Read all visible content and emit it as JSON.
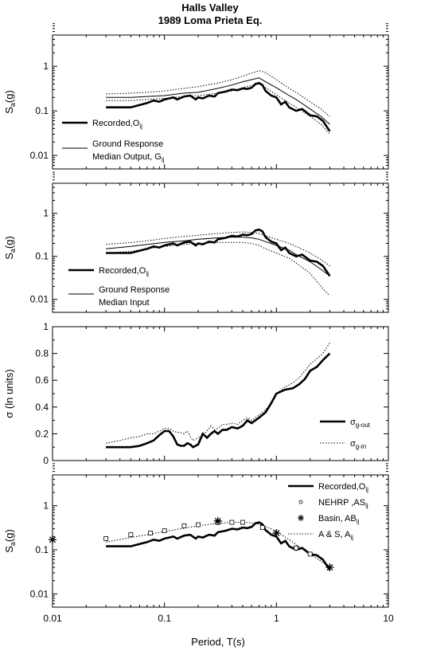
{
  "title": "Halls Valley",
  "subtitle": "1989 Loma Prieta Eq.",
  "xlabel": "Period, T(s)",
  "chart_data": [
    {
      "type": "line",
      "yscale": "log",
      "xscale": "log",
      "xlim": [
        0.01,
        10
      ],
      "ylim": [
        0.005,
        5
      ],
      "ylabel": "Sa(g)",
      "yticks": [
        0.01,
        0.1,
        1
      ],
      "ytick_labels": [
        "0.01",
        "0.1",
        "1"
      ],
      "series": [
        {
          "name": "Recorded,Oij",
          "style": "thick",
          "x": [
            0.03,
            0.05,
            0.07,
            0.08,
            0.09,
            0.1,
            0.11,
            0.12,
            0.13,
            0.15,
            0.17,
            0.19,
            0.2,
            0.22,
            0.25,
            0.28,
            0.3,
            0.35,
            0.4,
            0.45,
            0.5,
            0.55,
            0.6,
            0.65,
            0.7,
            0.75,
            0.8,
            0.9,
            1.0,
            1.1,
            1.2,
            1.3,
            1.5,
            1.7,
            2.0,
            2.3,
            2.6,
            3.0
          ],
          "y": [
            0.12,
            0.12,
            0.15,
            0.17,
            0.16,
            0.18,
            0.19,
            0.2,
            0.18,
            0.21,
            0.22,
            0.18,
            0.2,
            0.19,
            0.22,
            0.21,
            0.25,
            0.27,
            0.3,
            0.29,
            0.32,
            0.31,
            0.33,
            0.4,
            0.42,
            0.38,
            0.28,
            0.22,
            0.2,
            0.14,
            0.16,
            0.12,
            0.1,
            0.11,
            0.08,
            0.075,
            0.06,
            0.035
          ]
        },
        {
          "name": "Median Output, Gij",
          "style": "thin",
          "x": [
            0.03,
            0.05,
            0.07,
            0.1,
            0.15,
            0.2,
            0.3,
            0.4,
            0.5,
            0.6,
            0.7,
            0.8,
            1.0,
            1.3,
            1.5,
            2.0,
            2.5,
            3.0
          ],
          "y": [
            0.2,
            0.2,
            0.21,
            0.22,
            0.25,
            0.26,
            0.32,
            0.38,
            0.45,
            0.5,
            0.55,
            0.45,
            0.33,
            0.22,
            0.18,
            0.11,
            0.075,
            0.05
          ]
        },
        {
          "name": "",
          "style": "dotted",
          "x": [
            0.03,
            0.05,
            0.07,
            0.1,
            0.15,
            0.2,
            0.3,
            0.4,
            0.5,
            0.6,
            0.7,
            0.8,
            1.0,
            1.3,
            1.5,
            2.0,
            2.5,
            3.0
          ],
          "y": [
            0.24,
            0.25,
            0.26,
            0.28,
            0.32,
            0.35,
            0.42,
            0.5,
            0.6,
            0.7,
            0.8,
            0.72,
            0.5,
            0.32,
            0.26,
            0.16,
            0.11,
            0.075
          ]
        },
        {
          "name": "",
          "style": "dotted",
          "x": [
            0.03,
            0.05,
            0.07,
            0.1,
            0.15,
            0.2,
            0.3,
            0.4,
            0.5,
            0.6,
            0.7,
            0.8,
            1.0,
            1.3,
            1.5,
            2.0,
            2.5,
            3.0
          ],
          "y": [
            0.17,
            0.17,
            0.18,
            0.19,
            0.21,
            0.22,
            0.25,
            0.28,
            0.33,
            0.37,
            0.4,
            0.33,
            0.23,
            0.15,
            0.12,
            0.075,
            0.05,
            0.03
          ]
        }
      ],
      "legend": [
        {
          "style": "thick",
          "lines": [
            "Recorded,O",
            "ij"
          ]
        },
        {
          "style": "thin",
          "lines": [
            "Ground Response",
            "Median Output, G",
            "ij"
          ]
        }
      ]
    },
    {
      "type": "line",
      "yscale": "log",
      "xscale": "log",
      "xlim": [
        0.01,
        10
      ],
      "ylim": [
        0.005,
        5
      ],
      "ylabel": "Sa(g)",
      "yticks": [
        0.01,
        0.1,
        1
      ],
      "ytick_labels": [
        "0.01",
        "0.1",
        "1"
      ],
      "series": [
        {
          "name": "Recorded,Oij",
          "style": "thick",
          "x": [
            0.03,
            0.05,
            0.07,
            0.08,
            0.09,
            0.1,
            0.11,
            0.12,
            0.13,
            0.15,
            0.17,
            0.19,
            0.2,
            0.22,
            0.25,
            0.28,
            0.3,
            0.35,
            0.4,
            0.45,
            0.5,
            0.55,
            0.6,
            0.65,
            0.7,
            0.75,
            0.8,
            0.9,
            1.0,
            1.1,
            1.2,
            1.3,
            1.5,
            1.7,
            2.0,
            2.3,
            2.6,
            3.0
          ],
          "y": [
            0.12,
            0.12,
            0.15,
            0.17,
            0.16,
            0.18,
            0.19,
            0.2,
            0.18,
            0.21,
            0.22,
            0.18,
            0.2,
            0.19,
            0.22,
            0.21,
            0.25,
            0.27,
            0.3,
            0.29,
            0.32,
            0.31,
            0.33,
            0.4,
            0.42,
            0.38,
            0.28,
            0.22,
            0.2,
            0.14,
            0.16,
            0.12,
            0.1,
            0.11,
            0.08,
            0.075,
            0.06,
            0.035
          ]
        },
        {
          "name": "Median Input",
          "style": "thin",
          "x": [
            0.03,
            0.05,
            0.07,
            0.1,
            0.15,
            0.2,
            0.3,
            0.4,
            0.5,
            0.6,
            0.7,
            0.8,
            1.0,
            1.3,
            1.5,
            2.0,
            2.5,
            3.0
          ],
          "y": [
            0.15,
            0.17,
            0.19,
            0.21,
            0.23,
            0.25,
            0.27,
            0.28,
            0.28,
            0.27,
            0.25,
            0.22,
            0.18,
            0.14,
            0.11,
            0.075,
            0.05,
            0.035
          ]
        },
        {
          "name": "",
          "style": "dotted",
          "x": [
            0.03,
            0.05,
            0.07,
            0.1,
            0.15,
            0.2,
            0.3,
            0.4,
            0.5,
            0.6,
            0.7,
            0.8,
            1.0,
            1.3,
            1.5,
            2.0,
            2.5,
            3.0
          ],
          "y": [
            0.19,
            0.21,
            0.23,
            0.26,
            0.29,
            0.31,
            0.34,
            0.36,
            0.37,
            0.36,
            0.34,
            0.3,
            0.25,
            0.2,
            0.17,
            0.12,
            0.085,
            0.06
          ]
        },
        {
          "name": "",
          "style": "dotted",
          "x": [
            0.03,
            0.05,
            0.07,
            0.1,
            0.15,
            0.2,
            0.3,
            0.4,
            0.5,
            0.6,
            0.7,
            0.8,
            1.0,
            1.3,
            1.5,
            2.0,
            2.5,
            3.0
          ],
          "y": [
            0.12,
            0.13,
            0.15,
            0.17,
            0.19,
            0.2,
            0.21,
            0.21,
            0.21,
            0.2,
            0.18,
            0.15,
            0.12,
            0.09,
            0.07,
            0.04,
            0.02,
            0.012
          ]
        }
      ],
      "legend": [
        {
          "style": "thick",
          "lines": [
            "Recorded,O",
            "ij"
          ]
        },
        {
          "style": "thin",
          "lines": [
            "Ground Response",
            "Median Input"
          ]
        }
      ]
    },
    {
      "type": "line",
      "yscale": "linear",
      "xscale": "log",
      "xlim": [
        0.01,
        10
      ],
      "ylim": [
        0,
        1
      ],
      "ylabel": "σ (ln units)",
      "yticks": [
        0,
        0.2,
        0.4,
        0.6,
        0.8,
        1
      ],
      "ytick_labels": [
        "0",
        "0.2",
        "0.4",
        "0.6",
        "0.8",
        "1"
      ],
      "series": [
        {
          "name": "σg-out",
          "style": "thick",
          "x": [
            0.03,
            0.04,
            0.05,
            0.06,
            0.07,
            0.08,
            0.09,
            0.1,
            0.11,
            0.12,
            0.13,
            0.14,
            0.15,
            0.16,
            0.17,
            0.18,
            0.2,
            0.22,
            0.24,
            0.26,
            0.28,
            0.3,
            0.33,
            0.36,
            0.4,
            0.45,
            0.5,
            0.55,
            0.6,
            0.7,
            0.8,
            0.9,
            1.0,
            1.2,
            1.4,
            1.6,
            1.8,
            2.0,
            2.3,
            2.6,
            3.0
          ],
          "y": [
            0.1,
            0.1,
            0.1,
            0.11,
            0.13,
            0.15,
            0.19,
            0.22,
            0.22,
            0.18,
            0.12,
            0.11,
            0.11,
            0.13,
            0.12,
            0.1,
            0.12,
            0.2,
            0.17,
            0.2,
            0.22,
            0.2,
            0.23,
            0.23,
            0.25,
            0.24,
            0.26,
            0.3,
            0.28,
            0.32,
            0.36,
            0.43,
            0.5,
            0.53,
            0.54,
            0.57,
            0.61,
            0.67,
            0.7,
            0.75,
            0.8
          ]
        },
        {
          "name": "σg-in",
          "style": "dotted",
          "x": [
            0.03,
            0.04,
            0.05,
            0.06,
            0.07,
            0.08,
            0.09,
            0.1,
            0.11,
            0.12,
            0.13,
            0.14,
            0.15,
            0.16,
            0.17,
            0.18,
            0.2,
            0.22,
            0.24,
            0.26,
            0.28,
            0.3,
            0.33,
            0.36,
            0.4,
            0.45,
            0.5,
            0.55,
            0.6,
            0.7,
            0.8,
            0.9,
            1.0,
            1.2,
            1.4,
            1.6,
            1.8,
            2.0,
            2.3,
            2.6,
            3.0
          ],
          "y": [
            0.13,
            0.15,
            0.17,
            0.18,
            0.2,
            0.2,
            0.22,
            0.24,
            0.24,
            0.22,
            0.21,
            0.21,
            0.2,
            0.22,
            0.18,
            0.15,
            0.17,
            0.19,
            0.22,
            0.26,
            0.23,
            0.24,
            0.27,
            0.27,
            0.28,
            0.27,
            0.3,
            0.32,
            0.3,
            0.34,
            0.38,
            0.43,
            0.5,
            0.55,
            0.58,
            0.62,
            0.67,
            0.72,
            0.76,
            0.8,
            0.88
          ]
        }
      ],
      "legend": [
        {
          "style": "thick",
          "lines": [
            "σ",
            "g-out"
          ]
        },
        {
          "style": "dotted",
          "lines": [
            "σ",
            "g-in"
          ]
        }
      ]
    },
    {
      "type": "line",
      "yscale": "log",
      "xscale": "log",
      "xlim": [
        0.01,
        10
      ],
      "ylim": [
        0.005,
        5
      ],
      "ylabel": "Sa(g)",
      "yticks": [
        0.01,
        0.1,
        1
      ],
      "ytick_labels": [
        "0.01",
        "0.1",
        "1"
      ],
      "xticks": [
        0.01,
        0.1,
        1,
        10
      ],
      "xtick_labels": [
        "0.01",
        "0.1",
        "1",
        "10"
      ],
      "series": [
        {
          "name": "Recorded,Oij",
          "style": "thick",
          "x": [
            0.03,
            0.05,
            0.07,
            0.08,
            0.09,
            0.1,
            0.11,
            0.12,
            0.13,
            0.15,
            0.17,
            0.19,
            0.2,
            0.22,
            0.25,
            0.28,
            0.3,
            0.35,
            0.4,
            0.45,
            0.5,
            0.55,
            0.6,
            0.65,
            0.7,
            0.75,
            0.8,
            0.9,
            1.0,
            1.1,
            1.2,
            1.3,
            1.5,
            1.7,
            2.0,
            2.3,
            2.6,
            3.0
          ],
          "y": [
            0.12,
            0.12,
            0.15,
            0.17,
            0.16,
            0.18,
            0.19,
            0.2,
            0.18,
            0.21,
            0.22,
            0.18,
            0.2,
            0.19,
            0.22,
            0.21,
            0.25,
            0.27,
            0.3,
            0.29,
            0.32,
            0.31,
            0.33,
            0.4,
            0.42,
            0.38,
            0.28,
            0.22,
            0.2,
            0.14,
            0.16,
            0.12,
            0.1,
            0.11,
            0.08,
            0.075,
            0.06,
            0.035
          ]
        },
        {
          "name": "A & S, Aij",
          "style": "dotted",
          "x": [
            0.03,
            0.05,
            0.07,
            0.1,
            0.15,
            0.2,
            0.3,
            0.4,
            0.5,
            0.6,
            0.7,
            0.8,
            1.0,
            1.3,
            1.5,
            2.0,
            2.5,
            3.0
          ],
          "y": [
            0.15,
            0.19,
            0.22,
            0.26,
            0.31,
            0.35,
            0.4,
            0.42,
            0.42,
            0.41,
            0.38,
            0.34,
            0.26,
            0.17,
            0.13,
            0.08,
            0.055,
            0.04
          ]
        },
        {
          "name": "NEHRP ,ASij",
          "style": "squares",
          "x": [
            0.03,
            0.05,
            0.075,
            0.1,
            0.15,
            0.2,
            0.3,
            0.4,
            0.5,
            0.75,
            1.5,
            2.0
          ],
          "y": [
            0.18,
            0.22,
            0.24,
            0.27,
            0.35,
            0.37,
            0.42,
            0.42,
            0.42,
            0.32,
            0.11,
            0.08
          ]
        },
        {
          "name": "Basin, ABij",
          "style": "stars",
          "x": [
            0.01,
            0.3,
            1.0,
            3.0
          ],
          "y": [
            0.17,
            0.45,
            0.24,
            0.04
          ]
        }
      ],
      "legend": [
        {
          "style": "thick",
          "lines": [
            "Recorded,O",
            "ij"
          ]
        },
        {
          "style": "squares",
          "lines": [
            "NEHRP ,AS",
            "ij"
          ]
        },
        {
          "style": "stars",
          "lines": [
            "Basin, AB",
            "ij"
          ]
        },
        {
          "style": "dotted",
          "lines": [
            "A & S, A",
            "ij"
          ]
        }
      ]
    }
  ]
}
